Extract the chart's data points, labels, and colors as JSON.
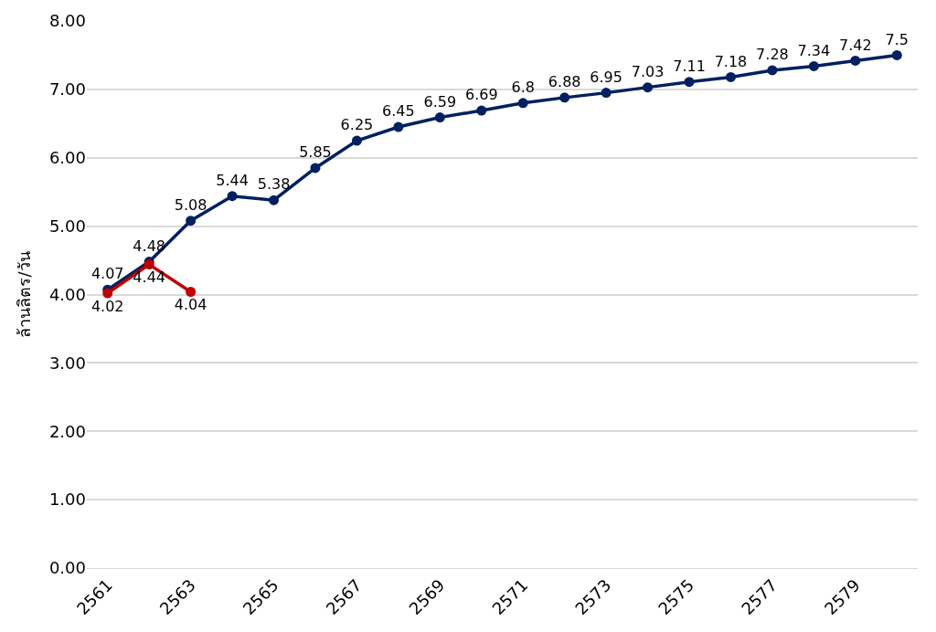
{
  "chart_data": {
    "type": "line",
    "ylabel": "ล้านลิตร/วัน",
    "x": [
      2561,
      2562,
      2563,
      2564,
      2565,
      2566,
      2567,
      2568,
      2569,
      2570,
      2571,
      2572,
      2573,
      2574,
      2575,
      2576,
      2577,
      2578,
      2579,
      2580
    ],
    "series": [
      {
        "color": "#002060",
        "values": [
          4.07,
          4.48,
          5.08,
          5.44,
          5.38,
          5.85,
          6.25,
          6.45,
          6.59,
          6.69,
          6.8,
          6.88,
          6.95,
          7.03,
          7.11,
          7.18,
          7.28,
          7.34,
          7.42,
          7.5
        ]
      },
      {
        "color": "#c00000",
        "x": [
          2561,
          2562,
          2563
        ],
        "values": [
          4.02,
          4.44,
          4.04
        ]
      }
    ],
    "xlim": [
      2560.5,
      2580.5
    ],
    "xticks": [
      2561,
      2563,
      2565,
      2567,
      2569,
      2571,
      2573,
      2575,
      2577,
      2579
    ],
    "ylim": [
      0,
      8
    ],
    "yticks": [
      {
        "value": 0,
        "label": "0.00"
      },
      {
        "value": 1,
        "label": "1.00"
      },
      {
        "value": 2,
        "label": "2.00"
      },
      {
        "value": 3,
        "label": "3.00"
      },
      {
        "value": 4,
        "label": "4.00"
      },
      {
        "value": 5,
        "label": "5.00"
      },
      {
        "value": 6,
        "label": "6.00"
      },
      {
        "value": 7,
        "label": "7.00"
      },
      {
        "value": 8,
        "label": "8.00"
      }
    ],
    "grid": "y",
    "legend": false,
    "marker": "circle",
    "line_style": "solid",
    "data_labels": true
  }
}
